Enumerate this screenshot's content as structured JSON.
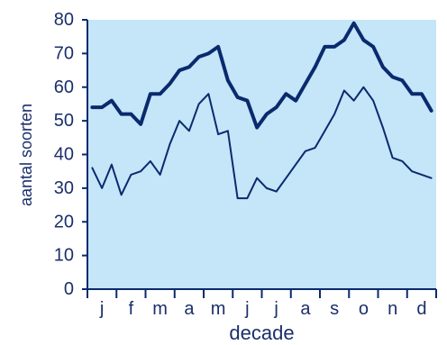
{
  "chart_data": {
    "type": "line",
    "title": "",
    "xlabel": "decade",
    "ylabel": "aantal soorten",
    "ylim": [
      0,
      80
    ],
    "yticks": [
      0,
      10,
      20,
      30,
      40,
      50,
      60,
      70,
      80
    ],
    "x": [
      1,
      2,
      3,
      4,
      5,
      6,
      7,
      8,
      9,
      10,
      11,
      12,
      13,
      14,
      15,
      16,
      17,
      18,
      19,
      20,
      21,
      22,
      23,
      24,
      25,
      26,
      27,
      28,
      29,
      30,
      31,
      32,
      33,
      34,
      35,
      36
    ],
    "month_labels": [
      "j",
      "f",
      "m",
      "a",
      "m",
      "j",
      "j",
      "a",
      "s",
      "o",
      "n",
      "d"
    ],
    "grid": false,
    "legend": "none",
    "series": [
      {
        "style": "thick",
        "values": [
          54,
          54,
          56,
          52,
          52,
          49,
          58,
          58,
          61,
          65,
          66,
          69,
          70,
          72,
          62,
          57,
          56,
          48,
          52,
          54,
          58,
          56,
          61,
          66,
          72,
          72,
          74,
          79,
          74,
          72,
          66,
          63,
          62,
          58,
          58,
          53
        ]
      },
      {
        "style": "thin",
        "values": [
          36,
          30,
          37,
          28,
          34,
          35,
          38,
          34,
          43,
          50,
          47,
          55,
          58,
          46,
          47,
          27,
          27,
          33,
          30,
          29,
          33,
          37,
          41,
          42,
          47,
          52,
          59,
          56,
          60,
          56,
          48,
          39,
          38,
          35,
          34,
          33
        ]
      }
    ]
  },
  "colors": {
    "plot_background": "#c5e5f8",
    "line": "#0a2a6e",
    "axis": "#0a2a6e",
    "text": "#1b2f6b"
  }
}
